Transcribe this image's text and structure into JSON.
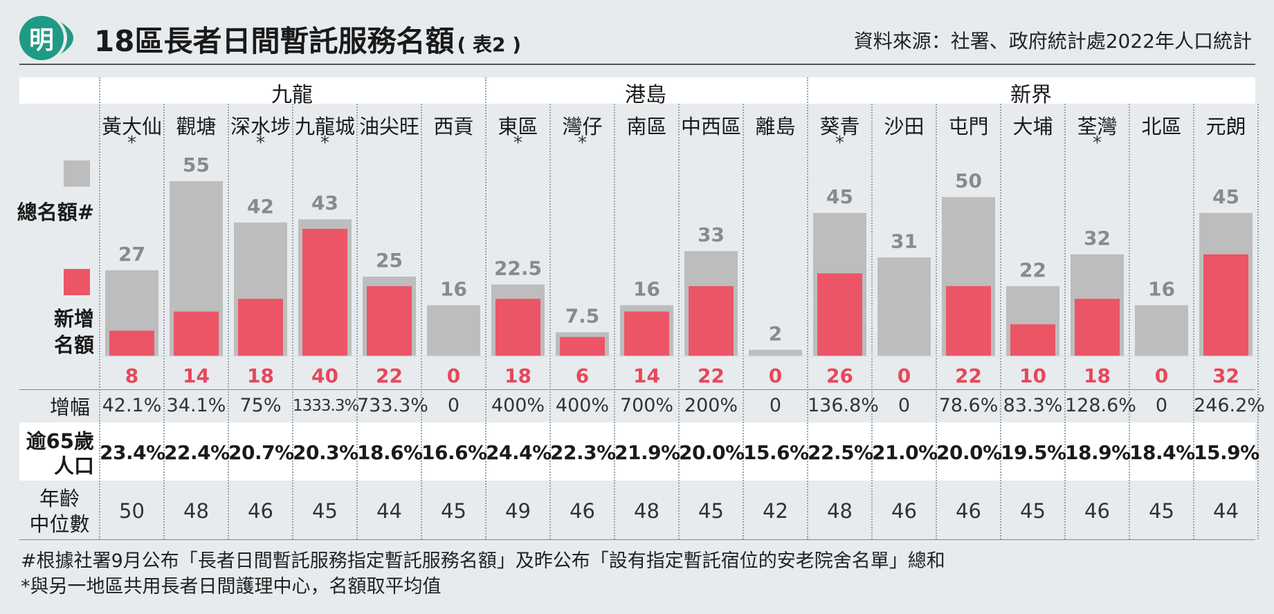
{
  "header": {
    "logo_char": "明",
    "title": "18區長者日間暫託服務名額",
    "title_suffix": "( 表2 )",
    "source": "資料來源：社署、政府統計處2022年人口統計"
  },
  "legend": {
    "total_label": "總名額#",
    "new_label_line1": "新增",
    "new_label_line2": "名額"
  },
  "row_labels": {
    "growth": "增幅",
    "age65_line1": "逾65歲",
    "age65_line2": "人口",
    "median_line1": "年齡",
    "median_line2": "中位數"
  },
  "footnotes": {
    "hash": "#根據社署9月公布「長者日間暫託服務指定暫託服務名額」及昨公布「設有指定暫託宿位的安老院舍名單」總和",
    "star": "*與另一地區共用長者日間護理中心，名額取平均值"
  },
  "colors": {
    "total_bar": "#bdbdbd",
    "new_bar": "#ec5566",
    "new_text": "#e8475a",
    "total_text": "#8a8a8a",
    "logo": "#1f9a84"
  },
  "chart_data": {
    "type": "bar",
    "regions": [
      {
        "name": "九龍",
        "districts": [
          "黃大仙",
          "觀塘",
          "深水埗",
          "九龍城",
          "油尖旺",
          "西貢"
        ]
      },
      {
        "name": "港島",
        "districts": [
          "東區",
          "灣仔",
          "南區",
          "中西區",
          "離島"
        ]
      },
      {
        "name": "新界",
        "districts": [
          "葵青",
          "沙田",
          "屯門",
          "大埔",
          "荃灣",
          "北區",
          "元朗"
        ]
      }
    ],
    "categories": [
      "黃大仙",
      "觀塘",
      "深水埗",
      "九龍城",
      "油尖旺",
      "西貢",
      "東區",
      "灣仔",
      "南區",
      "中西區",
      "離島",
      "葵青",
      "沙田",
      "屯門",
      "大埔",
      "荃灣",
      "北區",
      "元朗"
    ],
    "shared_center": [
      true,
      false,
      true,
      true,
      false,
      false,
      true,
      true,
      false,
      false,
      false,
      true,
      false,
      false,
      false,
      true,
      false,
      false
    ],
    "series": [
      {
        "name": "總名額#",
        "values": [
          27,
          55,
          42,
          43,
          25,
          16,
          22.5,
          7.5,
          16,
          33,
          2,
          45,
          31,
          50,
          22,
          32,
          16,
          45
        ],
        "labels": [
          "27",
          "55",
          "42",
          "43",
          "25",
          "16",
          "22.5",
          "7.5",
          "16",
          "33",
          "2",
          "45",
          "31",
          "50",
          "22",
          "32",
          "16",
          "45"
        ]
      },
      {
        "name": "新增名額",
        "values": [
          8,
          14,
          18,
          40,
          22,
          0,
          18,
          6,
          14,
          22,
          0,
          26,
          0,
          22,
          10,
          18,
          0,
          32
        ],
        "labels": [
          "8",
          "14",
          "18",
          "40",
          "22",
          "0",
          "18",
          "6",
          "14",
          "22",
          "0",
          "26",
          "0",
          "22",
          "10",
          "18",
          "0",
          "32"
        ]
      }
    ],
    "growth": [
      "42.1%",
      "34.1%",
      "75%",
      "1333.3%",
      "733.3%",
      "0",
      "400%",
      "400%",
      "700%",
      "200%",
      "0",
      "136.8%",
      "0",
      "78.6%",
      "83.3%",
      "128.6%",
      "0",
      "246.2%"
    ],
    "age65_population": [
      "23.4%",
      "22.4%",
      "20.7%",
      "20.3%",
      "18.6%",
      "16.6%",
      "24.4%",
      "22.3%",
      "21.9%",
      "20.0%",
      "15.6%",
      "22.5%",
      "21.0%",
      "20.0%",
      "19.5%",
      "18.9%",
      "18.4%",
      "15.9%"
    ],
    "median_age": [
      "50",
      "48",
      "46",
      "45",
      "44",
      "45",
      "49",
      "46",
      "48",
      "45",
      "42",
      "48",
      "46",
      "46",
      "45",
      "46",
      "45",
      "44"
    ],
    "ylim": [
      0,
      55
    ]
  }
}
